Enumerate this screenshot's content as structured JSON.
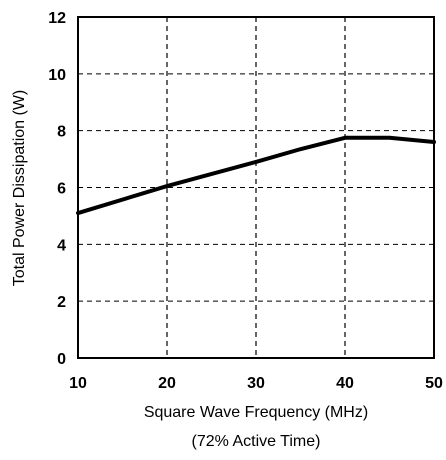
{
  "chart_data": {
    "type": "line",
    "xlabel": "Square Wave Frequency (MHz)",
    "subtitle": "(72% Active Time)",
    "ylabel": "Total Power Dissipation (W)",
    "xlim": [
      10,
      50
    ],
    "ylim": [
      0,
      12
    ],
    "x_ticks": [
      10,
      20,
      30,
      40,
      50
    ],
    "y_ticks": [
      0,
      2,
      4,
      6,
      8,
      10,
      12
    ],
    "grid": true,
    "series": [
      {
        "x": [
          10,
          20,
          30,
          35,
          40,
          45,
          50
        ],
        "y": [
          5.1,
          6.05,
          6.9,
          7.35,
          7.75,
          7.75,
          7.6
        ]
      }
    ]
  }
}
